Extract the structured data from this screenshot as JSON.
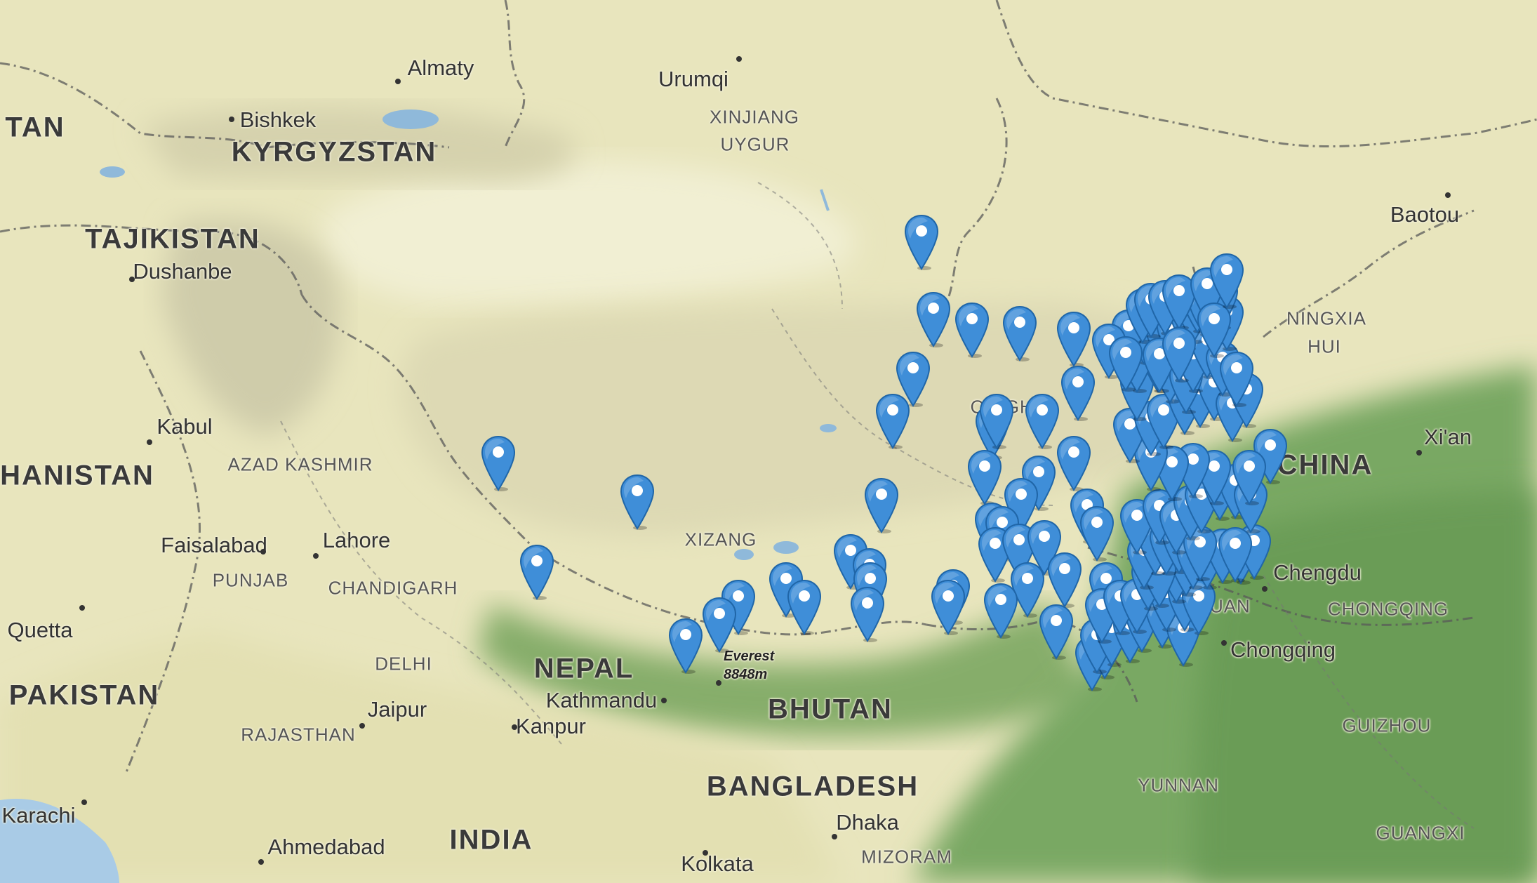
{
  "map": {
    "labels": [
      {
        "id": "almaty",
        "text": "Almaty",
        "type": "city"
      },
      {
        "id": "urumqi",
        "text": "Urumqi",
        "type": "city"
      },
      {
        "id": "bishkek",
        "text": "Bishkek",
        "type": "city"
      },
      {
        "id": "tan",
        "text": "TAN",
        "type": "country"
      },
      {
        "id": "kyrgyzstan",
        "text": "KYRGYZSTAN",
        "type": "country"
      },
      {
        "id": "xinjiang",
        "text": "XINJIANG",
        "type": "region"
      },
      {
        "id": "uygur",
        "text": "UYGUR",
        "type": "region"
      },
      {
        "id": "tajikistan",
        "text": "TAJIKISTAN",
        "type": "country"
      },
      {
        "id": "dushanbe",
        "text": "Dushanbe",
        "type": "city"
      },
      {
        "id": "baotou",
        "text": "Baotou",
        "type": "city"
      },
      {
        "id": "ningxia",
        "text": "NINGXIA",
        "type": "region"
      },
      {
        "id": "hui",
        "text": "HUI",
        "type": "region"
      },
      {
        "id": "kabul",
        "text": "Kabul",
        "type": "city"
      },
      {
        "id": "qinghai",
        "text": "QINGHAI",
        "type": "region"
      },
      {
        "id": "xian",
        "text": "Xi'an",
        "type": "city"
      },
      {
        "id": "azad_kashmir",
        "text": "AZAD KASHMIR",
        "type": "region"
      },
      {
        "id": "hanistan",
        "text": "HANISTAN",
        "type": "country"
      },
      {
        "id": "china",
        "text": "CHINA",
        "type": "country"
      },
      {
        "id": "faisalabad",
        "text": "Faisalabad",
        "type": "city"
      },
      {
        "id": "lahore",
        "text": "Lahore",
        "type": "city"
      },
      {
        "id": "xizang",
        "text": "XIZANG",
        "type": "region"
      },
      {
        "id": "punjab",
        "text": "PUNJAB",
        "type": "region"
      },
      {
        "id": "chandigarh",
        "text": "CHANDIGARH",
        "type": "region"
      },
      {
        "id": "chengdu",
        "text": "Chengdu",
        "type": "city"
      },
      {
        "id": "quetta",
        "text": "Quetta",
        "type": "city"
      },
      {
        "id": "huan",
        "text": "HUAN",
        "type": "region"
      },
      {
        "id": "chongqing_r",
        "text": "CHONGQING",
        "type": "region"
      },
      {
        "id": "everest",
        "text": "Everest\n8848m",
        "type": "peak"
      },
      {
        "id": "chongqing",
        "text": "Chongqing",
        "type": "city"
      },
      {
        "id": "delhi",
        "text": "DELHI",
        "type": "region"
      },
      {
        "id": "nepal",
        "text": "NEPAL",
        "type": "country"
      },
      {
        "id": "pakistan",
        "text": "PAKISTAN",
        "type": "country"
      },
      {
        "id": "kathmandu",
        "text": "Kathmandu",
        "type": "city"
      },
      {
        "id": "jaipur",
        "text": "Jaipur",
        "type": "city"
      },
      {
        "id": "bhutan",
        "text": "BHUTAN",
        "type": "country"
      },
      {
        "id": "kanpur",
        "text": "Kanpur",
        "type": "city"
      },
      {
        "id": "rajasthan",
        "text": "RAJASTHAN",
        "type": "region"
      },
      {
        "id": "guizhou",
        "text": "GUIZHOU",
        "type": "region"
      },
      {
        "id": "bangladesh",
        "text": "BANGLADESH",
        "type": "country"
      },
      {
        "id": "yunnan",
        "text": "YUNNAN",
        "type": "region"
      },
      {
        "id": "karachi",
        "text": "Karachi",
        "type": "city"
      },
      {
        "id": "dhaka",
        "text": "Dhaka",
        "type": "city"
      },
      {
        "id": "guangxi",
        "text": "GUANGXI",
        "type": "region"
      },
      {
        "id": "ahmedabad",
        "text": "Ahmedabad",
        "type": "city"
      },
      {
        "id": "india",
        "text": "INDIA",
        "type": "country"
      },
      {
        "id": "kolkata",
        "text": "Kolkata",
        "type": "city"
      },
      {
        "id": "mizoram",
        "text": "MIZORAM",
        "type": "region"
      }
    ],
    "marker": {
      "fill": "#3f8ed8",
      "stroke": "#2066a8",
      "dot": "#ffffff",
      "icon": "map-pin-icon"
    },
    "colors": {
      "plateau": "#e6e4c0",
      "lowland_green": "#5f9a4f",
      "water": "#9fc4e0",
      "border": "#555555"
    }
  }
}
